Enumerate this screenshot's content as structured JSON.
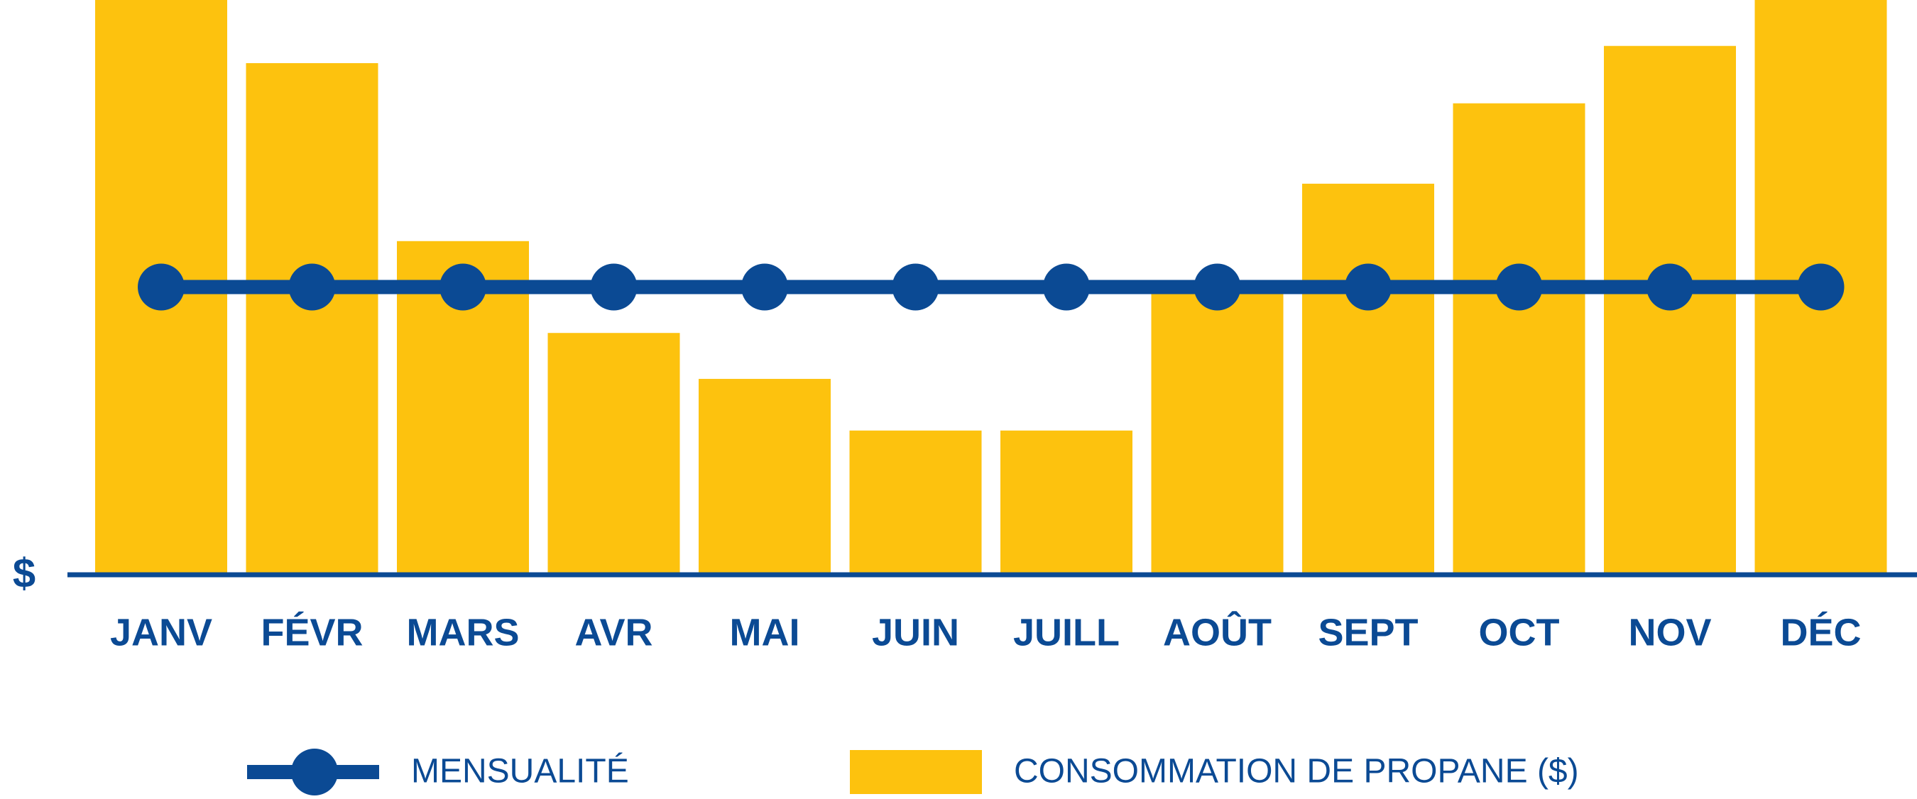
{
  "chart_data": {
    "type": "bar",
    "y_label": "$",
    "categories": [
      "JANV",
      "FÉVR",
      "MARS",
      "AVR",
      "MAI",
      "JUIN",
      "JUILL",
      "AOÛT",
      "SEPT",
      "OCT",
      "NOV",
      "DÉC"
    ],
    "series": [
      {
        "name": "MENSUALITÉ",
        "type": "line",
        "color": "#0b4a94",
        "values": [
          50,
          50,
          50,
          50,
          50,
          50,
          50,
          50,
          50,
          50,
          50,
          50
        ]
      },
      {
        "name": "CONSOMMATION DE PROPANE ($)",
        "type": "bar",
        "color": "#fdc20e",
        "values": [
          100,
          89,
          58,
          42,
          34,
          25,
          25,
          50,
          68,
          82,
          92,
          100
        ]
      }
    ],
    "ylim": [
      0,
      100
    ]
  }
}
